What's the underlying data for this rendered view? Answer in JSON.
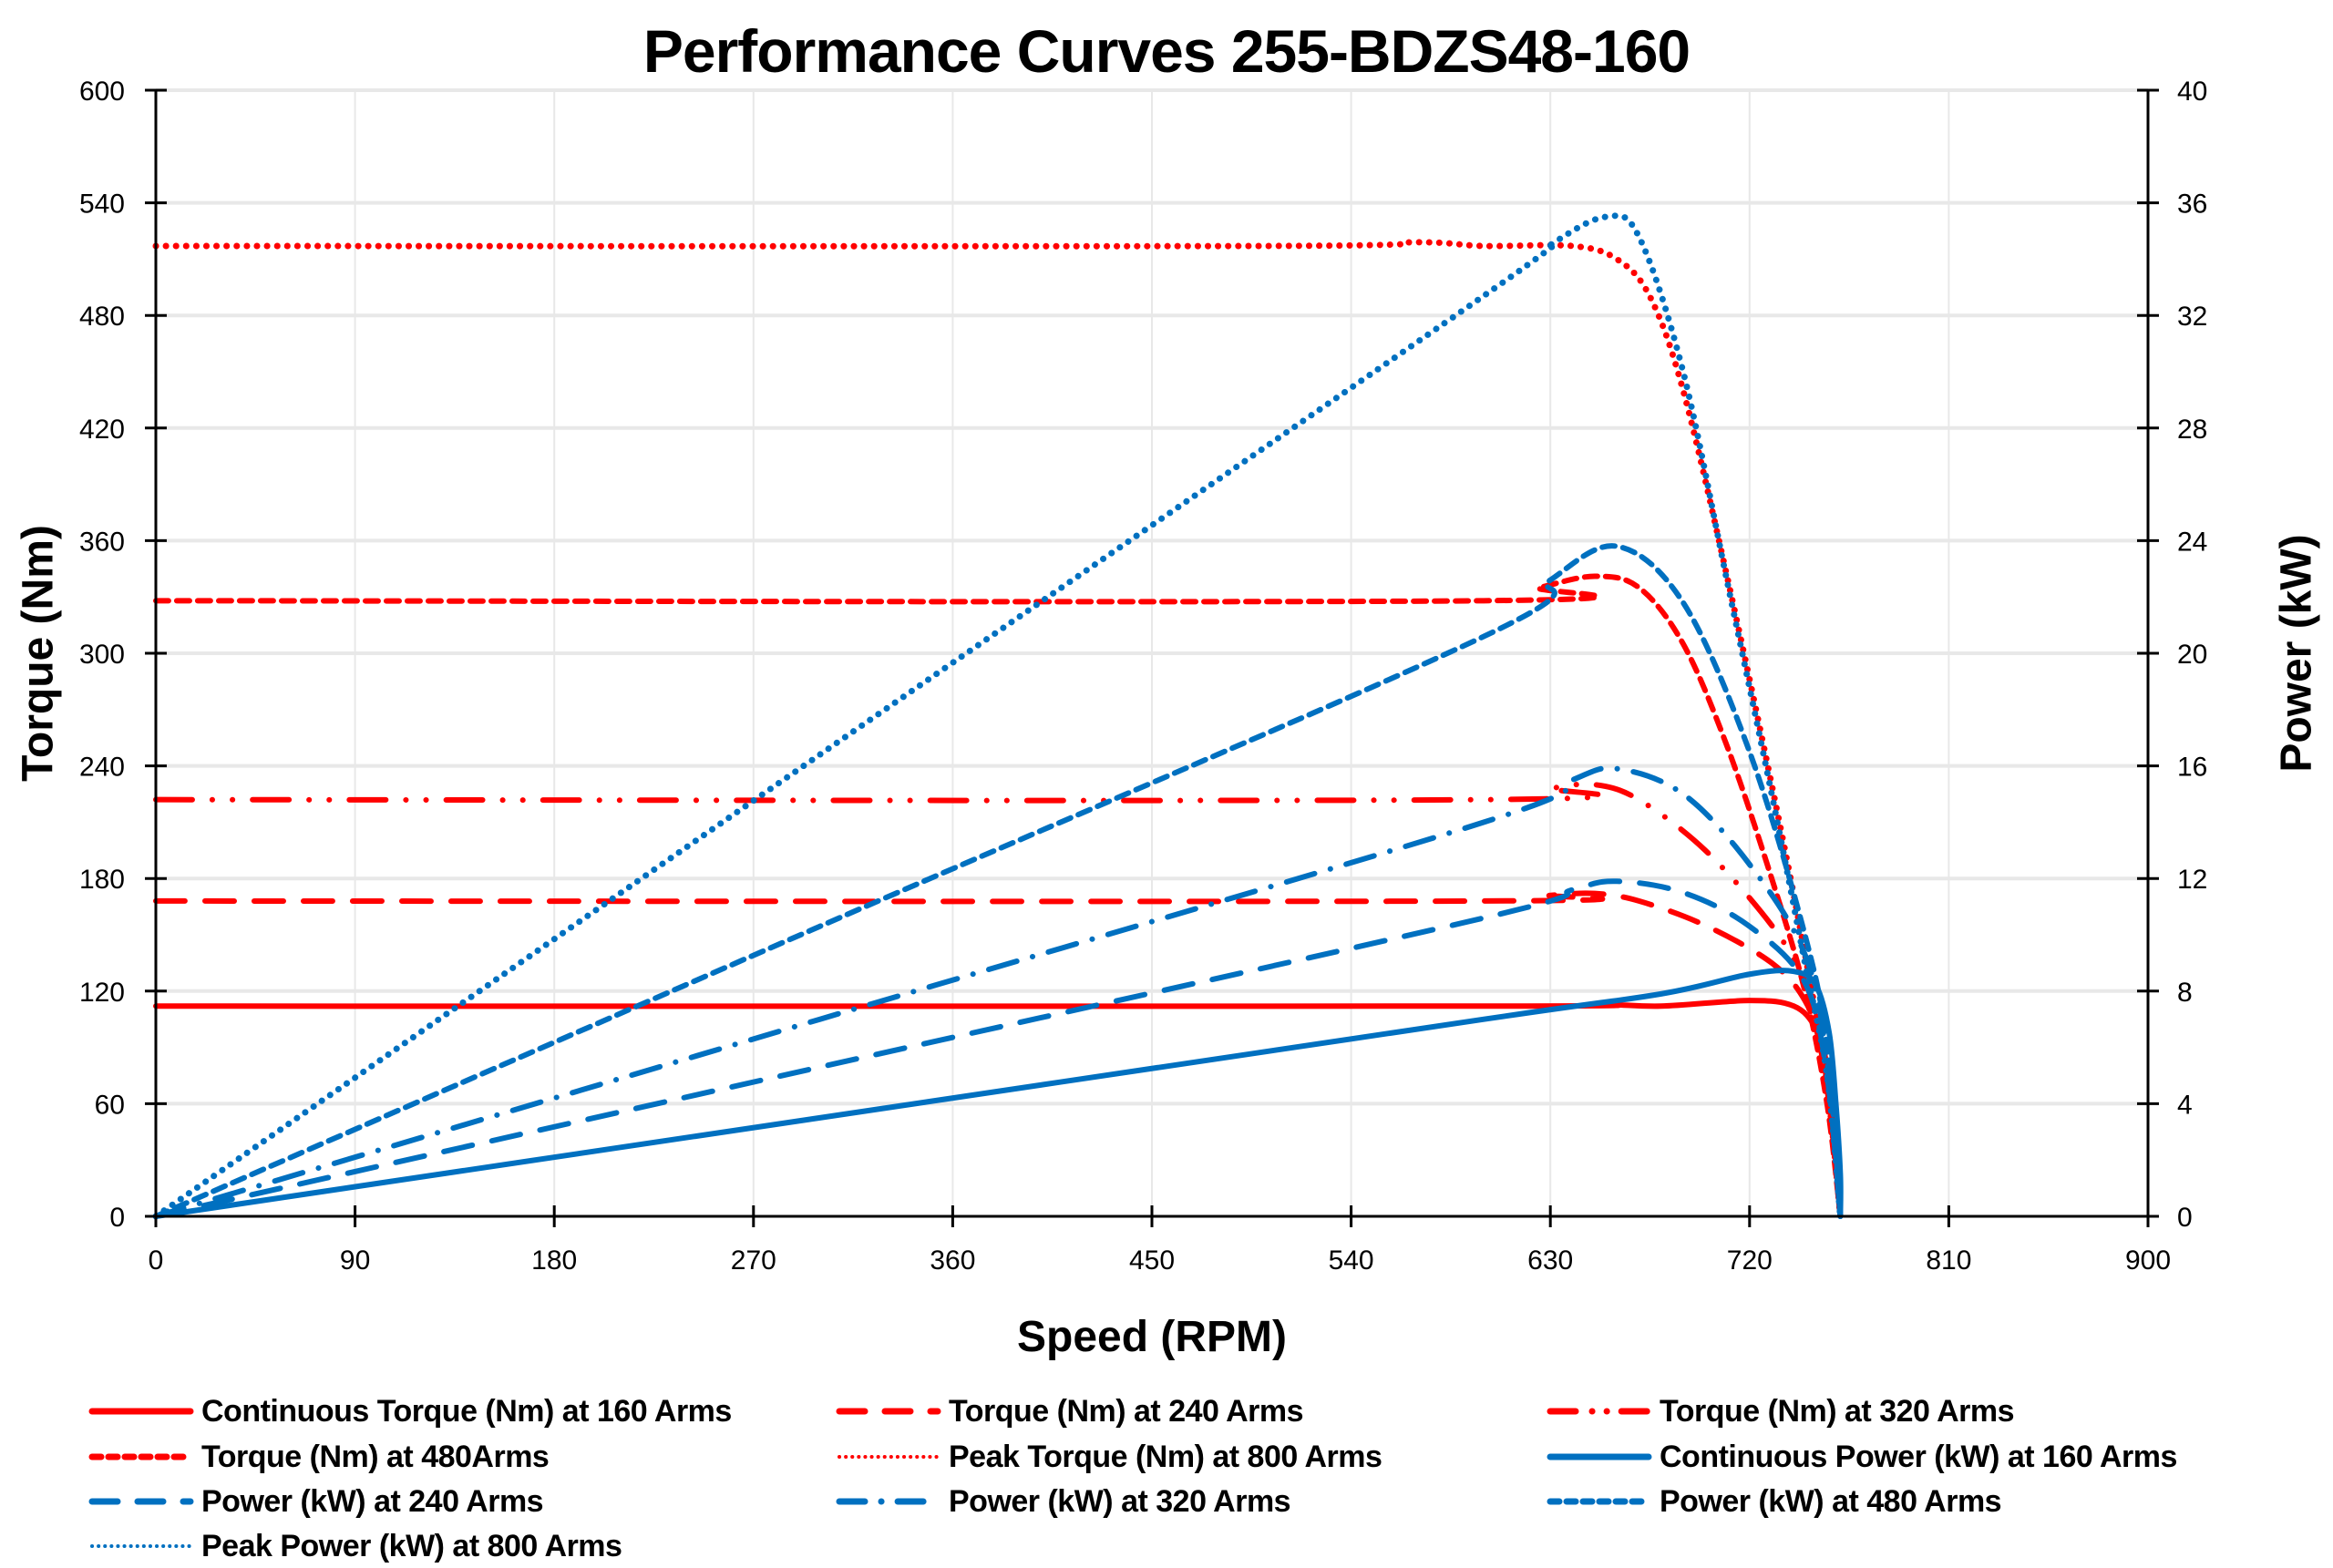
{
  "chart_data": {
    "type": "line",
    "title": "Performance Curves 255-BDZS48-160",
    "xlabel": "Speed (RPM)",
    "ylabel": "Torque (Nm)",
    "ylabel_right": "Power (kW)",
    "xlim": [
      0,
      900
    ],
    "ylim": [
      0,
      600
    ],
    "ylim_right": [
      0,
      40
    ],
    "x_ticks": [
      0,
      90,
      180,
      270,
      360,
      450,
      540,
      630,
      720,
      810,
      900
    ],
    "y_ticks": [
      0,
      60,
      120,
      180,
      240,
      300,
      360,
      420,
      480,
      540,
      600
    ],
    "y_ticks_right": [
      0,
      4,
      8,
      12,
      16,
      20,
      24,
      28,
      32,
      36,
      40
    ],
    "grid": true,
    "legend_position": "bottom",
    "colors": {
      "torque": "#FF0000",
      "power": "#0070C0"
    },
    "series": [
      {
        "name": "Continuous Torque (Nm) at 160 Arms",
        "axis": "left",
        "color": "#FF0000",
        "style": "solid",
        "x": [
          0,
          600,
          650,
          680,
          720,
          740,
          750,
          755,
          758,
          760,
          761
        ],
        "y": [
          112,
          112,
          113,
          112,
          115,
          112,
          100,
          80,
          50,
          20,
          0
        ]
      },
      {
        "name": "Torque (Nm) at 240 Arms",
        "axis": "left",
        "color": "#FF0000",
        "style": "longdash",
        "x": [
          0,
          600,
          630,
          650,
          670,
          700,
          730,
          745,
          752,
          758,
          761
        ],
        "y": [
          168,
          168,
          171,
          172,
          168,
          155,
          135,
          115,
          90,
          40,
          0
        ]
      },
      {
        "name": "Torque (Nm) at 320 Arms",
        "axis": "left",
        "color": "#FF0000",
        "style": "dashdotdot",
        "x": [
          0,
          600,
          630,
          650,
          670,
          700,
          730,
          745,
          752,
          758,
          761
        ],
        "y": [
          222,
          222,
          228,
          230,
          222,
          195,
          155,
          125,
          95,
          40,
          0
        ]
      },
      {
        "name": "Torque (Nm) at 480Arms",
        "axis": "left",
        "color": "#FF0000",
        "style": "shortdash",
        "x": [
          0,
          600,
          625,
          650,
          670,
          690,
          710,
          730,
          745,
          755,
          761
        ],
        "y": [
          328,
          328,
          335,
          341,
          335,
          305,
          250,
          180,
          120,
          60,
          0
        ]
      },
      {
        "name": "Peak Torque (Nm) at 800  Arms",
        "axis": "left",
        "color": "#FF0000",
        "style": "dot",
        "x": [
          0,
          500,
          570,
          600,
          640,
          660,
          675,
          690,
          710,
          730,
          745,
          755,
          761
        ],
        "y": [
          517,
          517,
          519,
          517,
          517,
          510,
          490,
          440,
          340,
          230,
          140,
          70,
          0
        ]
      },
      {
        "name": "Continuous Power (kW) at 160 Arms",
        "axis": "right",
        "color": "#0070C0",
        "style": "solid",
        "x": [
          0,
          300,
          600,
          680,
          720,
          740,
          750,
          756,
          759,
          761,
          761
        ],
        "y": [
          0,
          3.5,
          7.0,
          7.9,
          8.6,
          8.7,
          8.2,
          6.5,
          4.0,
          1.5,
          0
        ]
      },
      {
        "name": "Power (kW) at 240 Arms",
        "axis": "right",
        "color": "#0070C0",
        "style": "longdash",
        "x": [
          0,
          300,
          600,
          640,
          660,
          690,
          720,
          745,
          755,
          761
        ],
        "y": [
          0,
          5.3,
          10.6,
          11.6,
          11.9,
          11.5,
          10.3,
          8.3,
          5.0,
          0
        ]
      },
      {
        "name": "Power (kW) at 320 Arms",
        "axis": "right",
        "color": "#0070C0",
        "style": "dashdot",
        "x": [
          0,
          300,
          600,
          640,
          660,
          690,
          720,
          745,
          755,
          761
        ],
        "y": [
          0,
          7.0,
          14.0,
          15.5,
          15.9,
          15.0,
          12.5,
          9.3,
          5.5,
          0
        ]
      },
      {
        "name": "Power (kW) at 480 Arms",
        "axis": "right",
        "color": "#0070C0",
        "style": "shortdash",
        "x": [
          0,
          300,
          600,
          630,
          660,
          690,
          720,
          745,
          755,
          761
        ],
        "y": [
          0,
          10.3,
          20.6,
          22.6,
          23.8,
          21.8,
          16.5,
          10.0,
          6.0,
          0
        ]
      },
      {
        "name": "Peak Power (kW) at 800 Arms",
        "axis": "right",
        "color": "#0070C0",
        "style": "dot",
        "x": [
          0,
          300,
          600,
          630,
          655,
          670,
          690,
          710,
          730,
          745,
          755,
          761
        ],
        "y": [
          0,
          16.4,
          32.7,
          34.5,
          35.5,
          34.8,
          30.0,
          22.5,
          15.0,
          9.0,
          5.0,
          0
        ]
      }
    ]
  }
}
